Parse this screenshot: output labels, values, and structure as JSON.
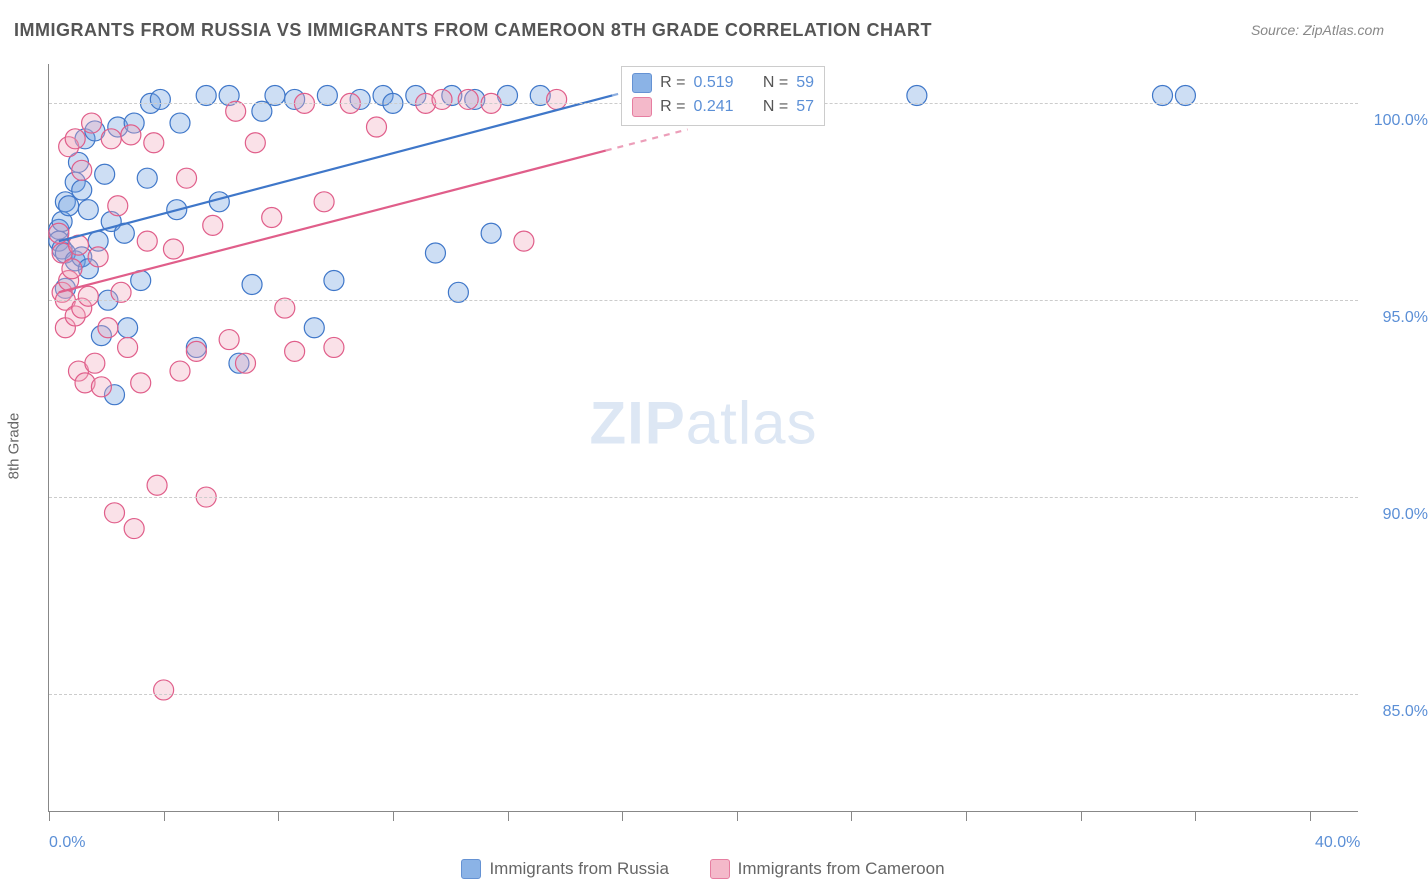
{
  "title": "IMMIGRANTS FROM RUSSIA VS IMMIGRANTS FROM CAMEROON 8TH GRADE CORRELATION CHART",
  "source_label": "Source: ",
  "source_name": "ZipAtlas.com",
  "watermark_zip": "ZIP",
  "watermark_atlas": "atlas",
  "y_axis_title": "8th Grade",
  "chart": {
    "type": "scatter",
    "x_min": 0.0,
    "x_max": 40.0,
    "y_min": 82.0,
    "y_max": 101.0,
    "x_ticks": [
      0.0,
      3.5,
      7.0,
      10.5,
      14.0,
      17.5,
      21.0,
      24.5,
      28.0,
      31.5,
      35.0,
      38.5
    ],
    "x_tick_labels": {
      "0": "0.0%",
      "40": "40.0%"
    },
    "y_ticks": [
      85.0,
      90.0,
      95.0,
      100.0
    ],
    "y_tick_labels": {
      "85": "85.0%",
      "90": "90.0%",
      "95": "95.0%",
      "100": "100.0%"
    },
    "grid_color": "#cccccc",
    "axis_color": "#888888",
    "background_color": "#ffffff",
    "tick_label_color": "#5b8fd6",
    "marker_radius": 10,
    "marker_fill_opacity": 0.35,
    "marker_stroke_width": 1.2,
    "trend_line_width": 2.2,
    "trend_dash_threshold_x": 17.0
  },
  "series": [
    {
      "name": "Immigrants from Russia",
      "color_fill": "#6fa1e0",
      "color_stroke": "#3f77c9",
      "r_value": "0.519",
      "n_value": "59",
      "trend": {
        "x1": 0.3,
        "y1": 96.5,
        "x2": 17.2,
        "y2": 100.2
      },
      "points": [
        [
          0.3,
          96.8
        ],
        [
          0.3,
          96.5
        ],
        [
          0.4,
          97.0
        ],
        [
          0.4,
          96.3
        ],
        [
          0.5,
          97.5
        ],
        [
          0.5,
          96.2
        ],
        [
          0.5,
          95.3
        ],
        [
          0.6,
          97.4
        ],
        [
          0.8,
          98.0
        ],
        [
          0.8,
          96.0
        ],
        [
          0.9,
          98.5
        ],
        [
          1.0,
          97.8
        ],
        [
          1.0,
          96.1
        ],
        [
          1.1,
          99.1
        ],
        [
          1.2,
          95.8
        ],
        [
          1.2,
          97.3
        ],
        [
          1.4,
          99.3
        ],
        [
          1.5,
          96.5
        ],
        [
          1.6,
          94.1
        ],
        [
          1.7,
          98.2
        ],
        [
          1.8,
          95.0
        ],
        [
          1.9,
          97.0
        ],
        [
          2.0,
          92.6
        ],
        [
          2.1,
          99.4
        ],
        [
          2.3,
          96.7
        ],
        [
          2.4,
          94.3
        ],
        [
          2.6,
          99.5
        ],
        [
          2.8,
          95.5
        ],
        [
          3.0,
          98.1
        ],
        [
          3.1,
          100.0
        ],
        [
          3.4,
          100.1
        ],
        [
          3.9,
          97.3
        ],
        [
          4.0,
          99.5
        ],
        [
          4.5,
          93.8
        ],
        [
          4.8,
          100.2
        ],
        [
          5.2,
          97.5
        ],
        [
          5.5,
          100.2
        ],
        [
          5.8,
          93.4
        ],
        [
          6.2,
          95.4
        ],
        [
          6.5,
          99.8
        ],
        [
          6.9,
          100.2
        ],
        [
          7.5,
          100.1
        ],
        [
          8.1,
          94.3
        ],
        [
          8.5,
          100.2
        ],
        [
          8.7,
          95.5
        ],
        [
          9.5,
          100.1
        ],
        [
          10.2,
          100.2
        ],
        [
          10.5,
          100.0
        ],
        [
          11.2,
          100.2
        ],
        [
          11.8,
          96.2
        ],
        [
          12.3,
          100.2
        ],
        [
          12.5,
          95.2
        ],
        [
          13.0,
          100.1
        ],
        [
          13.5,
          96.7
        ],
        [
          14.0,
          100.2
        ],
        [
          15.0,
          100.2
        ],
        [
          26.5,
          100.2
        ],
        [
          34.0,
          100.2
        ],
        [
          34.7,
          100.2
        ]
      ]
    },
    {
      "name": "Immigrants from Cameroon",
      "color_fill": "#f2a8bd",
      "color_stroke": "#e05e8a",
      "r_value": "0.241",
      "n_value": "57",
      "trend": {
        "x1": 0.3,
        "y1": 95.2,
        "x2": 17.0,
        "y2": 98.8
      },
      "points": [
        [
          0.3,
          96.7
        ],
        [
          0.4,
          95.2
        ],
        [
          0.4,
          96.2
        ],
        [
          0.5,
          95.0
        ],
        [
          0.5,
          94.3
        ],
        [
          0.6,
          95.5
        ],
        [
          0.6,
          98.9
        ],
        [
          0.7,
          95.8
        ],
        [
          0.8,
          94.6
        ],
        [
          0.8,
          99.1
        ],
        [
          0.9,
          93.2
        ],
        [
          0.9,
          96.4
        ],
        [
          1.0,
          98.3
        ],
        [
          1.0,
          94.8
        ],
        [
          1.1,
          92.9
        ],
        [
          1.2,
          95.1
        ],
        [
          1.3,
          99.5
        ],
        [
          1.4,
          93.4
        ],
        [
          1.5,
          96.1
        ],
        [
          1.6,
          92.8
        ],
        [
          1.8,
          94.3
        ],
        [
          1.9,
          99.1
        ],
        [
          2.0,
          89.6
        ],
        [
          2.1,
          97.4
        ],
        [
          2.2,
          95.2
        ],
        [
          2.4,
          93.8
        ],
        [
          2.5,
          99.2
        ],
        [
          2.6,
          89.2
        ],
        [
          2.8,
          92.9
        ],
        [
          3.0,
          96.5
        ],
        [
          3.2,
          99.0
        ],
        [
          3.3,
          90.3
        ],
        [
          3.5,
          85.1
        ],
        [
          3.8,
          96.3
        ],
        [
          4.0,
          93.2
        ],
        [
          4.2,
          98.1
        ],
        [
          4.5,
          93.7
        ],
        [
          4.8,
          90.0
        ],
        [
          5.0,
          96.9
        ],
        [
          5.5,
          94.0
        ],
        [
          5.7,
          99.8
        ],
        [
          6.0,
          93.4
        ],
        [
          6.3,
          99.0
        ],
        [
          6.8,
          97.1
        ],
        [
          7.2,
          94.8
        ],
        [
          7.5,
          93.7
        ],
        [
          7.8,
          100.0
        ],
        [
          8.4,
          97.5
        ],
        [
          8.7,
          93.8
        ],
        [
          9.2,
          100.0
        ],
        [
          10.0,
          99.4
        ],
        [
          11.5,
          100.0
        ],
        [
          12.0,
          100.1
        ],
        [
          12.8,
          100.1
        ],
        [
          13.5,
          100.0
        ],
        [
          14.5,
          96.5
        ],
        [
          15.5,
          100.1
        ]
      ]
    }
  ],
  "legend_box": {
    "r_label": "R =",
    "n_label": "N ="
  },
  "bottom_legend": {
    "items": [
      "Immigrants from Russia",
      "Immigrants from Cameroon"
    ]
  }
}
